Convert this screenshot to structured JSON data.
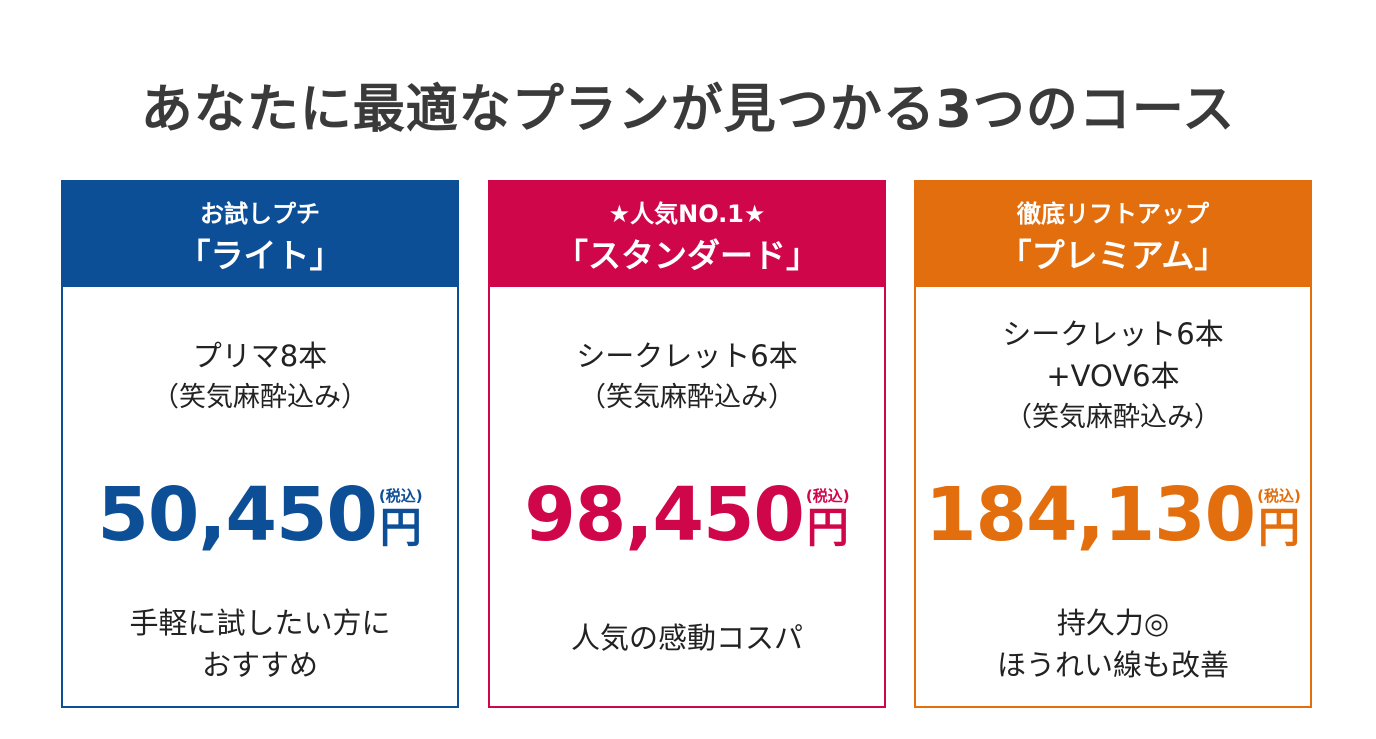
{
  "title": "あなたに最適なプランが見つかる3つのコース",
  "plans": [
    {
      "tag": "お試しプチ",
      "name": "「ライト」",
      "contents": [
        "プリマ8本"
      ],
      "note": "（笑気麻酔込み）",
      "price": "50,450",
      "tax_label": "(税込)",
      "unit": "円",
      "description": [
        "手軽に試したい方に",
        "おすすめ"
      ],
      "color": "#0d4f97"
    },
    {
      "tag": "★人気NO.1★",
      "name": "「スタンダード」",
      "contents": [
        "シークレット6本"
      ],
      "note": "（笑気麻酔込み）",
      "price": "98,450",
      "tax_label": "(税込)",
      "unit": "円",
      "description": [
        "人気の感動コスパ"
      ],
      "color": "#d0064a"
    },
    {
      "tag": "徹底リフトアップ",
      "name": "「プレミアム」",
      "contents": [
        "シークレット6本",
        "+VOV6本"
      ],
      "note": "（笑気麻酔込み）",
      "price": "184,130",
      "tax_label": "(税込)",
      "unit": "円",
      "description": [
        "持久力◎",
        "ほうれい線も改善"
      ],
      "color": "#e26e0e"
    }
  ]
}
